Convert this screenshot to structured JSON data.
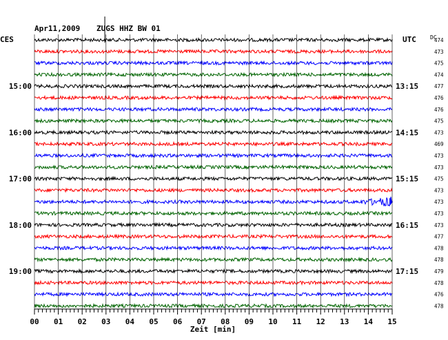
{
  "header": {
    "date": "Apr11,2009",
    "station": "ZUGS HHZ BW 01",
    "left_zone": "CES",
    "right_zone": "UTC",
    "dc_label": "DC"
  },
  "colors": {
    "black": "#000000",
    "red": "#ff0000",
    "blue": "#0000ff",
    "green": "#006400",
    "grid": "#000000"
  },
  "chart_data": {
    "type": "line",
    "title": "Apr11,2009  ZUGS HHZ BW 01",
    "xlabel": "Zeit [min]",
    "x_ticks": [
      "00",
      "01",
      "02",
      "03",
      "04",
      "05",
      "06",
      "07",
      "08",
      "09",
      "10",
      "11",
      "12",
      "13",
      "14",
      "15"
    ],
    "xlim": [
      0,
      15
    ],
    "left_time_labels": [
      {
        "trace": 4,
        "text": "15:00"
      },
      {
        "trace": 8,
        "text": "16:00"
      },
      {
        "trace": 12,
        "text": "17:00"
      },
      {
        "trace": 16,
        "text": "18:00"
      },
      {
        "trace": 20,
        "text": "19:00"
      }
    ],
    "right_time_labels": [
      {
        "trace": 4,
        "text": "13:15"
      },
      {
        "trace": 8,
        "text": "14:15"
      },
      {
        "trace": 12,
        "text": "15:15"
      },
      {
        "trace": 16,
        "text": "16:15"
      },
      {
        "trace": 20,
        "text": "17:15"
      }
    ],
    "trace_colors": [
      "black",
      "red",
      "blue",
      "green"
    ],
    "dc_values": [
      "474",
      "473",
      "475",
      "474",
      "477",
      "476",
      "476",
      "475",
      "473",
      "469",
      "473",
      "473",
      "475",
      "473",
      "473",
      "473",
      "473",
      "477",
      "478",
      "478",
      "479",
      "478",
      "476",
      "478"
    ],
    "events": [
      {
        "trace": 14,
        "x_min": 14.2,
        "description": "signal"
      }
    ]
  }
}
